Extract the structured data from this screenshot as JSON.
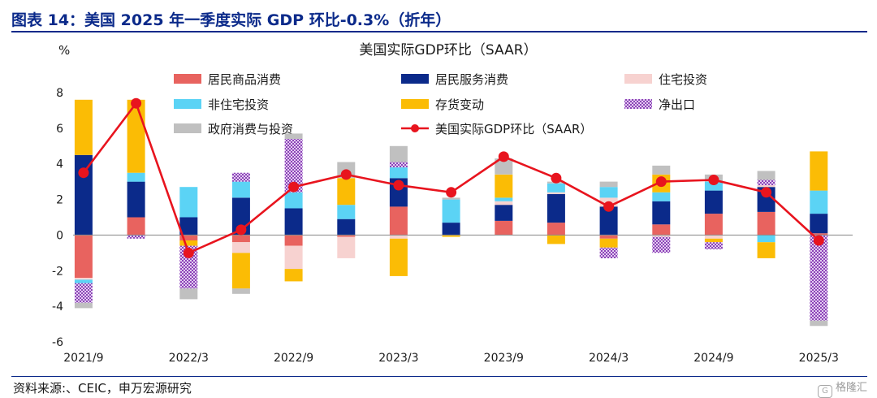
{
  "header": {
    "title": "图表 14：美国 2025 年一季度实际 GDP 环比-0.3%（折年）"
  },
  "footer": {
    "source": "资料来源:、CEIC，申万宏源研究",
    "watermark": "格隆汇",
    "watermark_logo": "G"
  },
  "chart_data": {
    "type": "bar",
    "stacked": true,
    "title": "美国实际GDP环比（SAAR）",
    "ylabel": "%",
    "xlabel": "",
    "ylim": [
      -6,
      8
    ],
    "yticks": [
      -6,
      -4,
      -2,
      0,
      2,
      4,
      6,
      8
    ],
    "grid": false,
    "legend_position": "top",
    "categories": [
      "2021Q3",
      "2021Q4",
      "2022Q1",
      "2022Q2",
      "2022Q3",
      "2022Q4",
      "2023Q1",
      "2023Q2",
      "2023Q3",
      "2023Q4",
      "2024Q1",
      "2024Q2",
      "2024Q3",
      "2024Q4",
      "2025Q1"
    ],
    "x_tick_labels": [
      {
        "index": 0,
        "label": "2021/9"
      },
      {
        "index": 2,
        "label": "2022/3"
      },
      {
        "index": 4,
        "label": "2022/9"
      },
      {
        "index": 6,
        "label": "2023/3"
      },
      {
        "index": 8,
        "label": "2023/9"
      },
      {
        "index": 10,
        "label": "2024/3"
      },
      {
        "index": 12,
        "label": "2024/9"
      },
      {
        "index": 14,
        "label": "2025/3"
      }
    ],
    "series": [
      {
        "name": "居民商品消费",
        "color": "#e8635f",
        "pattern": "solid",
        "values": [
          -2.4,
          1.0,
          -0.3,
          -0.4,
          -0.6,
          -0.1,
          1.6,
          0.0,
          0.8,
          0.7,
          -0.2,
          0.6,
          1.2,
          1.3,
          0.1
        ]
      },
      {
        "name": "居民服务消费",
        "color": "#0b2a8a",
        "pattern": "solid",
        "values": [
          4.5,
          2.0,
          1.0,
          2.1,
          1.5,
          0.9,
          1.6,
          0.7,
          0.9,
          1.6,
          1.6,
          1.3,
          1.3,
          1.4,
          1.1
        ]
      },
      {
        "name": "住宅投资",
        "color": "#f7d2d0",
        "pattern": "solid",
        "values": [
          -0.1,
          0.0,
          0.0,
          -0.6,
          -1.3,
          -1.2,
          -0.2,
          0.0,
          0.2,
          0.1,
          0.5,
          -0.1,
          -0.2,
          0.1,
          0.0
        ]
      },
      {
        "name": "非住宅投资",
        "color": "#5bd3f5",
        "pattern": "solid",
        "values": [
          -0.2,
          0.5,
          1.7,
          0.9,
          0.9,
          0.8,
          0.6,
          1.3,
          0.2,
          0.5,
          0.6,
          0.5,
          0.5,
          -0.4,
          1.3
        ]
      },
      {
        "name": "存货变动",
        "color": "#fbbc05",
        "pattern": "solid",
        "values": [
          3.1,
          4.1,
          -0.3,
          -2.0,
          -0.7,
          1.5,
          -2.1,
          -0.1,
          1.3,
          -0.5,
          -0.5,
          1.0,
          -0.2,
          -0.9,
          2.2
        ]
      },
      {
        "name": "净出口",
        "color": "#b26fd4",
        "pattern": "hatch",
        "values": [
          -1.1,
          -0.2,
          -2.4,
          0.5,
          3.0,
          0.0,
          0.3,
          0.0,
          0.0,
          0.0,
          -0.6,
          -0.9,
          -0.4,
          0.3,
          -4.8
        ]
      },
      {
        "name": "政府消费与投资",
        "color": "#c0c0c0",
        "pattern": "solid",
        "values": [
          -0.3,
          0.0,
          -0.6,
          -0.3,
          0.3,
          0.9,
          0.9,
          0.1,
          0.9,
          0.1,
          0.3,
          0.5,
          0.4,
          0.5,
          -0.3
        ]
      }
    ],
    "line": {
      "name": "美国实际GDP环比（SAAR）",
      "color": "#e8141e",
      "values": [
        3.5,
        7.4,
        -1.0,
        0.3,
        2.7,
        3.4,
        2.8,
        2.4,
        4.4,
        3.2,
        1.6,
        3.0,
        3.1,
        2.4,
        -0.3
      ]
    }
  }
}
